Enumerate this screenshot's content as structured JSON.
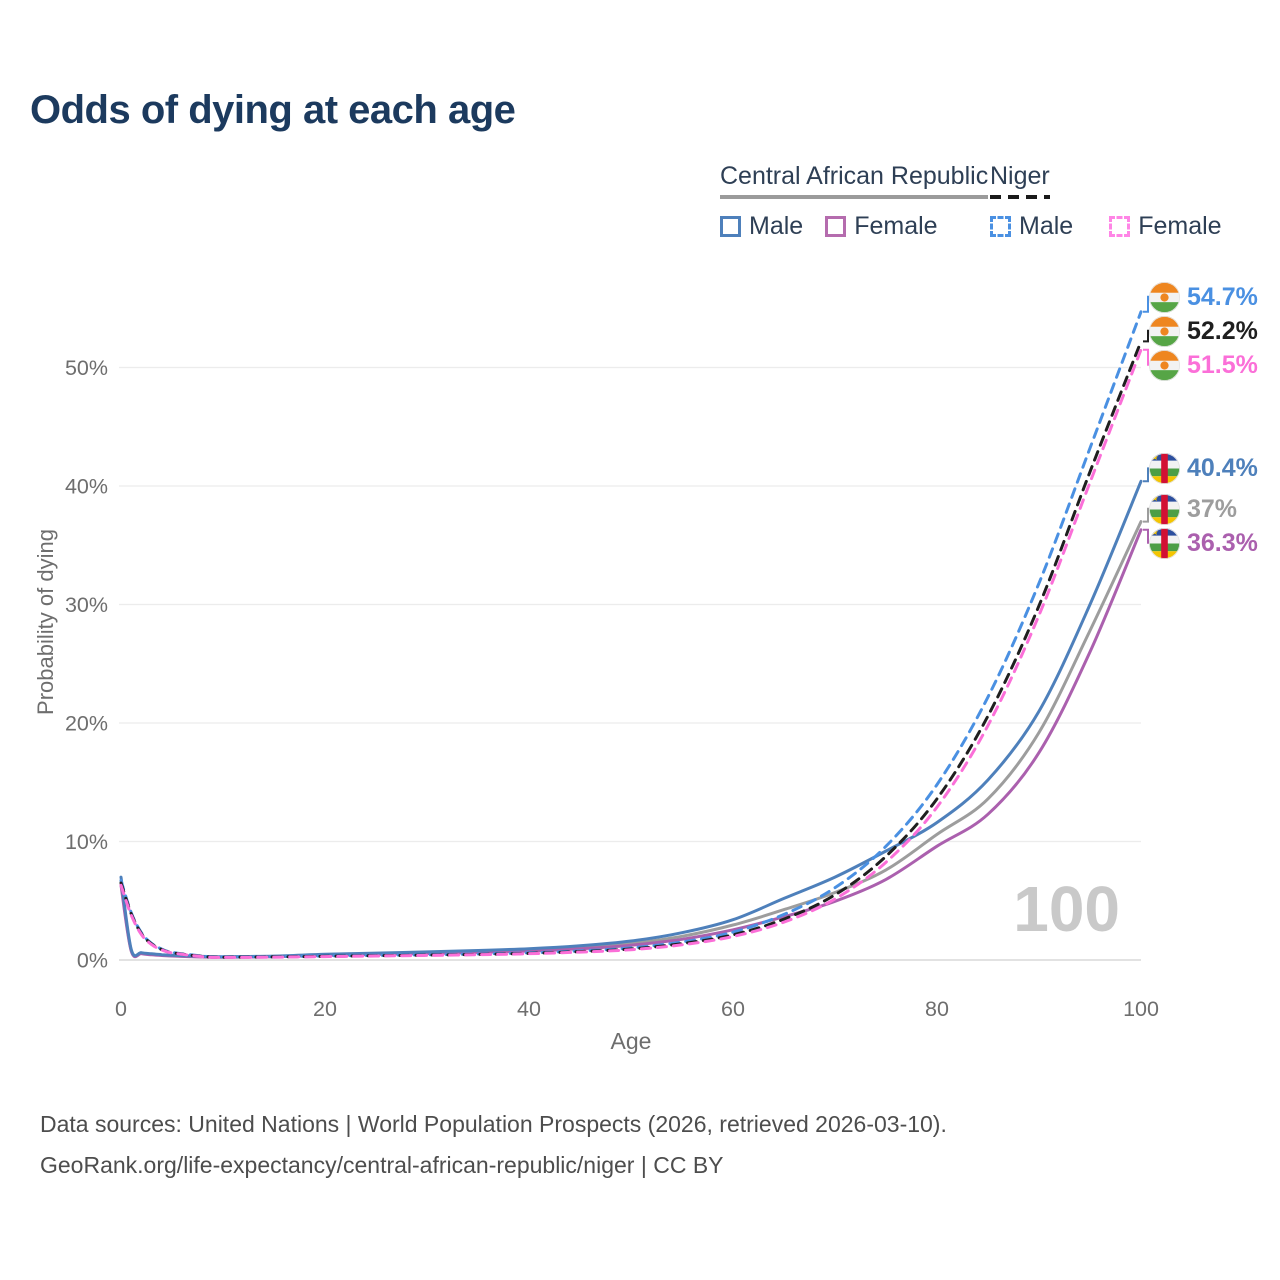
{
  "chart_data": {
    "type": "line",
    "title": "Odds of dying at each age",
    "xlabel": "Age",
    "ylabel": "Probability of dying",
    "xlim": [
      0,
      100
    ],
    "ylim": [
      0,
      55
    ],
    "grid": "horizontal",
    "legend_position": "top-right",
    "watermark": "100",
    "xticks": [
      {
        "value": 0,
        "label": "0"
      },
      {
        "value": 20,
        "label": "20"
      },
      {
        "value": 40,
        "label": "40"
      },
      {
        "value": 60,
        "label": "60"
      },
      {
        "value": 80,
        "label": "80"
      },
      {
        "value": 100,
        "label": "100"
      }
    ],
    "yticks": [
      {
        "value": 0,
        "label": "0%"
      },
      {
        "value": 10,
        "label": "10%"
      },
      {
        "value": 20,
        "label": "20%"
      },
      {
        "value": 30,
        "label": "30%"
      },
      {
        "value": 40,
        "label": "40%"
      },
      {
        "value": 50,
        "label": "50%"
      }
    ],
    "x": [
      0,
      1,
      2,
      3,
      4,
      5,
      8,
      10,
      15,
      20,
      25,
      30,
      35,
      40,
      45,
      50,
      55,
      60,
      65,
      70,
      75,
      80,
      85,
      90,
      95,
      100
    ],
    "series": [
      {
        "name": "Central African Republic Male",
        "country": "Central African Republic",
        "sex": "Male",
        "flag": "central-african-republic",
        "color": "#4e80bb",
        "dashed": false,
        "end_label": "40.4%",
        "values": [
          7.0,
          0.9,
          0.62,
          0.52,
          0.45,
          0.4,
          0.3,
          0.28,
          0.33,
          0.48,
          0.58,
          0.68,
          0.8,
          0.95,
          1.2,
          1.6,
          2.3,
          3.4,
          5.2,
          7.0,
          9.2,
          11.6,
          15.2,
          21.0,
          30.0,
          40.4
        ]
      },
      {
        "name": "Central African Republic Both sexes",
        "country": "Central African Republic",
        "sex": "Both",
        "flag": "central-african-republic",
        "color": "#9d9d9d",
        "dashed": false,
        "end_label": "37%",
        "values": [
          6.6,
          0.82,
          0.57,
          0.47,
          0.41,
          0.36,
          0.27,
          0.25,
          0.3,
          0.42,
          0.52,
          0.6,
          0.7,
          0.85,
          1.05,
          1.4,
          2.0,
          2.95,
          4.25,
          5.7,
          7.6,
          10.6,
          13.6,
          19.2,
          27.8,
          37.0
        ]
      },
      {
        "name": "Central African Republic Female",
        "country": "Central African Republic",
        "sex": "Female",
        "flag": "central-african-republic",
        "color": "#ab60ae",
        "dashed": false,
        "end_label": "36.3%",
        "values": [
          6.3,
          0.76,
          0.53,
          0.44,
          0.38,
          0.34,
          0.25,
          0.23,
          0.28,
          0.38,
          0.47,
          0.55,
          0.64,
          0.76,
          0.95,
          1.25,
          1.75,
          2.55,
          3.65,
          4.95,
          6.8,
          9.6,
          12.3,
          17.5,
          26.0,
          36.3
        ]
      },
      {
        "name": "Niger Male",
        "country": "Niger",
        "sex": "Male",
        "flag": "niger",
        "color": "#4a90e2",
        "dashed": true,
        "end_label": "54.7%",
        "values": [
          6.7,
          4.0,
          2.3,
          1.4,
          0.92,
          0.65,
          0.33,
          0.26,
          0.28,
          0.34,
          0.39,
          0.44,
          0.51,
          0.61,
          0.77,
          1.02,
          1.52,
          2.35,
          3.85,
          6.1,
          9.6,
          14.8,
          22.2,
          31.8,
          43.2,
          54.7
        ]
      },
      {
        "name": "Niger Both sexes",
        "country": "Niger",
        "sex": "Both",
        "flag": "niger",
        "color": "#1f1f1f",
        "dashed": true,
        "end_label": "52.2%",
        "values": [
          6.5,
          3.9,
          2.22,
          1.35,
          0.88,
          0.62,
          0.3,
          0.24,
          0.26,
          0.31,
          0.36,
          0.41,
          0.47,
          0.56,
          0.71,
          0.93,
          1.38,
          2.12,
          3.45,
          5.5,
          8.75,
          13.6,
          20.6,
          29.9,
          41.2,
          52.2
        ]
      },
      {
        "name": "Niger Female",
        "country": "Niger",
        "sex": "Female",
        "flag": "niger",
        "color": "#fb6fd8",
        "dashed": true,
        "end_label": "51.5%",
        "values": [
          6.3,
          3.8,
          2.15,
          1.3,
          0.85,
          0.6,
          0.28,
          0.22,
          0.24,
          0.29,
          0.34,
          0.39,
          0.45,
          0.53,
          0.67,
          0.87,
          1.28,
          1.98,
          3.2,
          5.15,
          8.25,
          12.9,
          19.8,
          29.1,
          40.3,
          51.5
        ]
      }
    ]
  },
  "legend": {
    "groups": [
      {
        "name": "Central African Republic",
        "line_style": "solid",
        "line_color": "#9b9b9b",
        "items": [
          {
            "label": "Male",
            "color": "#4e80bb",
            "dashed": false
          },
          {
            "label": "Female",
            "color": "#b56cae",
            "dashed": false
          }
        ]
      },
      {
        "name": "Niger",
        "line_style": "dashed",
        "line_color": "#1a1a1a",
        "items": [
          {
            "label": "Male",
            "color": "#4a90e2",
            "dashed": true
          },
          {
            "label": "Female",
            "color": "#ff85e6",
            "dashed": true
          }
        ]
      }
    ]
  },
  "footer": {
    "line1": "Data sources: United Nations | World Population Prospects (2026, retrieved 2026-03-10).",
    "line2": "GeoRank.org/life-expectancy/central-african-republic/niger | CC BY"
  }
}
